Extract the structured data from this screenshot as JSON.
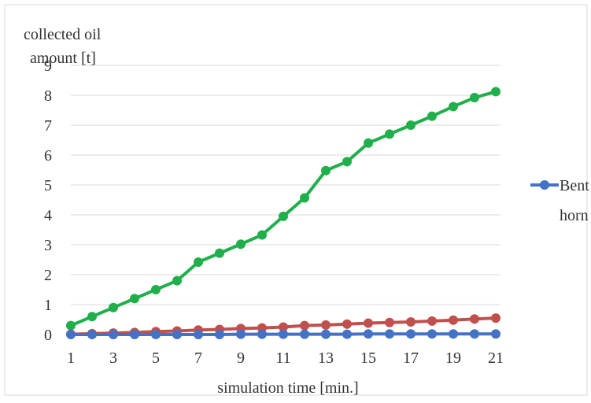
{
  "chart_data": {
    "type": "line",
    "title": "",
    "ylabel": "collected oil amount [t]",
    "ylabel_lines": [
      "collected oil",
      "amount [t]"
    ],
    "xlabel": "simulation time [min.]",
    "x": [
      1,
      2,
      3,
      4,
      5,
      6,
      7,
      8,
      9,
      10,
      11,
      12,
      13,
      14,
      15,
      16,
      17,
      18,
      19,
      20,
      21
    ],
    "x_tick_labels": [
      "1",
      "3",
      "5",
      "7",
      "9",
      "11",
      "13",
      "15",
      "17",
      "19",
      "21"
    ],
    "ylim": [
      0,
      9
    ],
    "y_ticks": [
      0,
      1,
      2,
      3,
      4,
      5,
      6,
      7,
      8,
      9
    ],
    "grid": true,
    "legend_position": "right",
    "legend_lines": [
      "Bent",
      "horn"
    ],
    "series": [
      {
        "name": "Bent horn",
        "color": "#4472C4",
        "values": [
          0.0,
          0.0,
          0.0,
          0.0,
          0.0,
          0.0,
          0.0,
          0.0,
          0.01,
          0.01,
          0.01,
          0.01,
          0.01,
          0.01,
          0.02,
          0.02,
          0.02,
          0.02,
          0.02,
          0.02,
          0.02
        ]
      },
      {
        "color": "#C0504D",
        "values": [
          0.01,
          0.03,
          0.05,
          0.07,
          0.1,
          0.12,
          0.15,
          0.17,
          0.2,
          0.22,
          0.25,
          0.3,
          0.32,
          0.35,
          0.38,
          0.4,
          0.42,
          0.45,
          0.48,
          0.52,
          0.55
        ]
      },
      {
        "color": "#1FAF4B",
        "values": [
          0.3,
          0.6,
          0.9,
          1.2,
          1.5,
          1.8,
          2.42,
          2.72,
          3.02,
          3.33,
          3.95,
          4.57,
          5.48,
          5.78,
          6.4,
          6.7,
          7.0,
          7.3,
          7.62,
          7.92,
          8.12
        ]
      }
    ]
  }
}
